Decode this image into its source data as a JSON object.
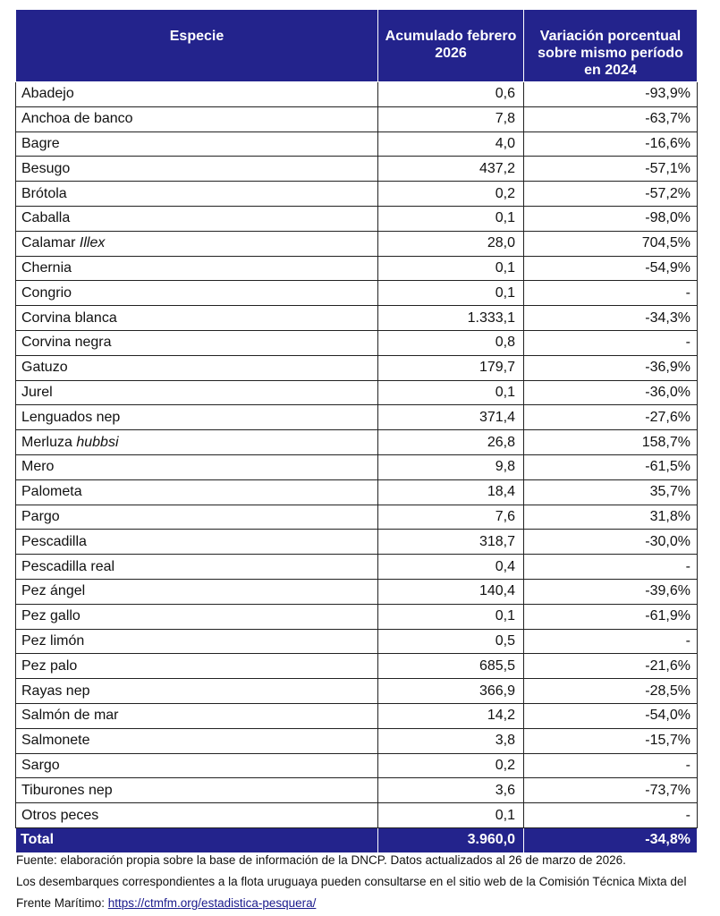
{
  "table": {
    "headers": {
      "species": "Especie",
      "accumulated": "Acumulado febrero 2026",
      "variation": "Variación porcentual sobre mismo período en 2024"
    },
    "rows": [
      {
        "species": "Abadejo",
        "italic": "",
        "value": "0,6",
        "variation": "-93,9%"
      },
      {
        "species": "Anchoa de banco",
        "italic": "",
        "value": "7,8",
        "variation": "-63,7%"
      },
      {
        "species": "Bagre",
        "italic": "",
        "value": "4,0",
        "variation": "-16,6%"
      },
      {
        "species": "Besugo",
        "italic": "",
        "value": "437,2",
        "variation": "-57,1%"
      },
      {
        "species": "Brótola",
        "italic": "",
        "value": "0,2",
        "variation": "-57,2%"
      },
      {
        "species": "Caballa",
        "italic": "",
        "value": "0,1",
        "variation": "-98,0%"
      },
      {
        "species": "Calamar ",
        "italic": "Illex",
        "value": "28,0",
        "variation": "704,5%"
      },
      {
        "species": "Chernia",
        "italic": "",
        "value": "0,1",
        "variation": "-54,9%"
      },
      {
        "species": "Congrio",
        "italic": "",
        "value": "0,1",
        "variation": "-"
      },
      {
        "species": "Corvina blanca",
        "italic": "",
        "value": "1.333,1",
        "variation": "-34,3%"
      },
      {
        "species": "Corvina negra",
        "italic": "",
        "value": "0,8",
        "variation": "-"
      },
      {
        "species": "Gatuzo",
        "italic": "",
        "value": "179,7",
        "variation": "-36,9%"
      },
      {
        "species": "Jurel",
        "italic": "",
        "value": "0,1",
        "variation": "-36,0%"
      },
      {
        "species": "Lenguados nep",
        "italic": "",
        "value": "371,4",
        "variation": "-27,6%"
      },
      {
        "species": "Merluza ",
        "italic": "hubbsi",
        "value": "26,8",
        "variation": "158,7%"
      },
      {
        "species": "Mero",
        "italic": "",
        "value": "9,8",
        "variation": "-61,5%"
      },
      {
        "species": "Palometa",
        "italic": "",
        "value": "18,4",
        "variation": "35,7%"
      },
      {
        "species": "Pargo",
        "italic": "",
        "value": "7,6",
        "variation": "31,8%"
      },
      {
        "species": "Pescadilla",
        "italic": "",
        "value": "318,7",
        "variation": "-30,0%"
      },
      {
        "species": "Pescadilla real",
        "italic": "",
        "value": "0,4",
        "variation": "-"
      },
      {
        "species": "Pez ángel",
        "italic": "",
        "value": "140,4",
        "variation": "-39,6%"
      },
      {
        "species": "Pez gallo",
        "italic": "",
        "value": "0,1",
        "variation": "-61,9%"
      },
      {
        "species": "Pez limón",
        "italic": "",
        "value": "0,5",
        "variation": "-"
      },
      {
        "species": "Pez palo",
        "italic": "",
        "value": "685,5",
        "variation": "-21,6%"
      },
      {
        "species": "Rayas nep",
        "italic": "",
        "value": "366,9",
        "variation": "-28,5%"
      },
      {
        "species": "Salmón de mar",
        "italic": "",
        "value": "14,2",
        "variation": "-54,0%"
      },
      {
        "species": "Salmonete",
        "italic": "",
        "value": "3,8",
        "variation": "-15,7%"
      },
      {
        "species": "Sargo",
        "italic": "",
        "value": "0,2",
        "variation": "-"
      },
      {
        "species": "Tiburones nep",
        "italic": "",
        "value": "3,6",
        "variation": "-73,7%"
      },
      {
        "species": "Otros peces",
        "italic": "",
        "value": "0,1",
        "variation": "-"
      }
    ],
    "total": {
      "label": "Total",
      "value": "3.960,0",
      "variation": "-34,8%"
    }
  },
  "notes": {
    "source": "Fuente: elaboración propia sobre la base de información de la DNCP. Datos actualizados al 26 de marzo de 2026.",
    "uruguay_text": "Los desembarques correspondientes a la flota uruguaya pueden consultarse en el sitio web de la Comisión Técnica Mixta del Frente Marítimo: ",
    "link": "https://ctmfm.org/estadistica-pesquera/"
  },
  "colors": {
    "header_bg": "#23238c",
    "header_text": "#ffffff",
    "border": "#222222"
  }
}
